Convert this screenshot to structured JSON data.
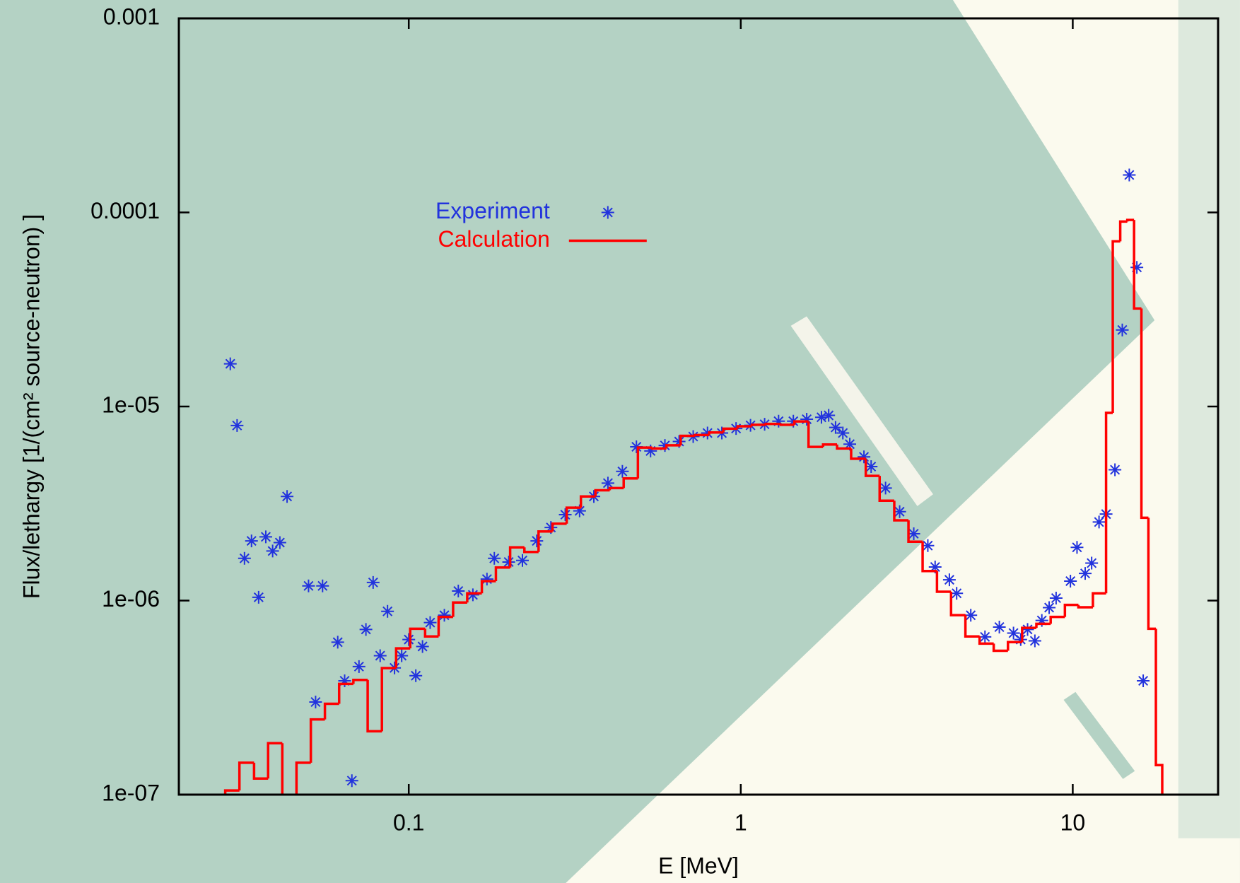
{
  "chart_data": {
    "type": "scatter",
    "xlabel": "E [MeV]",
    "ylabel": "Flux/lethargy [1/(cm² source-neutron) ]",
    "xscale": "log",
    "yscale": "log",
    "xlim": [
      0.0203,
      27.4
    ],
    "ylim": [
      1e-07,
      0.001
    ],
    "xticks": [
      0.1,
      1,
      10
    ],
    "yticks": [
      {
        "value": 1e-07,
        "label": "1e-07"
      },
      {
        "value": 1e-06,
        "label": "1e-06"
      },
      {
        "value": 1e-05,
        "label": "1e-05"
      },
      0.0001,
      0.001
    ],
    "legend": "upper left",
    "series": [
      {
        "name": "Experiment",
        "type": "scatter",
        "color": "#2233dd",
        "x": [
          0.029,
          0.0304,
          0.032,
          0.0336,
          0.0353,
          0.0371,
          0.0389,
          0.0409,
          0.043,
          0.0499,
          0.0524,
          0.055,
          0.0611,
          0.0641,
          0.0674,
          0.0708,
          0.0743,
          0.0781,
          0.082,
          0.0863,
          0.0906,
          0.0952,
          0.1,
          0.105,
          0.11,
          0.116,
          0.128,
          0.141,
          0.156,
          0.172,
          0.181,
          0.2,
          0.22,
          0.243,
          0.268,
          0.296,
          0.327,
          0.361,
          0.398,
          0.44,
          0.485,
          0.535,
          0.591,
          0.652,
          0.719,
          0.794,
          0.877,
          0.968,
          1.07,
          1.18,
          1.3,
          1.44,
          1.58,
          1.75,
          1.84,
          1.93,
          2.03,
          2.13,
          2.35,
          2.47,
          2.73,
          3.01,
          3.32,
          3.66,
          3.85,
          4.25,
          4.47,
          4.93,
          5.44,
          6.01,
          6.63,
          6.97,
          7.31,
          7.69,
          8.07,
          8.49,
          8.91,
          9.84,
          10.3,
          10.9,
          11.4,
          12.0,
          12.6,
          13.4,
          14.1,
          14.8,
          15.6,
          16.3
        ],
        "values": [
          1.66e-05,
          7.98e-06,
          1.65e-06,
          2.03e-06,
          1.04e-06,
          2.13e-06,
          1.8e-06,
          1.99e-06,
          3.44e-06,
          1.19e-06,
          3e-07,
          1.19e-06,
          6.1e-07,
          3.86e-07,
          1.18e-07,
          4.57e-07,
          7.1e-07,
          1.24e-06,
          5.2e-07,
          8.8e-07,
          4.5e-07,
          5.2e-07,
          6.3e-07,
          4.1e-07,
          5.8e-07,
          7.7e-07,
          8.4e-07,
          1.12e-06,
          1.07e-06,
          1.29e-06,
          1.65e-06,
          1.58e-06,
          1.61e-06,
          2.03e-06,
          2.38e-06,
          2.77e-06,
          2.9e-06,
          3.44e-06,
          4.03e-06,
          4.63e-06,
          6.2e-06,
          5.9e-06,
          6.3e-06,
          6.6e-06,
          7e-06,
          7.3e-06,
          7.3e-06,
          7.7e-06,
          8e-06,
          8.1e-06,
          8.4e-06,
          8.4e-06,
          8.6e-06,
          8.8e-06,
          9e-06,
          7.8e-06,
          7.3e-06,
          6.4e-06,
          5.5e-06,
          4.9e-06,
          3.8e-06,
          2.87e-06,
          2.21e-06,
          1.92e-06,
          1.49e-06,
          1.28e-06,
          1.09e-06,
          8.4e-07,
          6.5e-07,
          7.3e-07,
          6.8e-07,
          6.3e-07,
          7.1e-07,
          6.2e-07,
          7.9e-07,
          9.2e-07,
          1.03e-06,
          1.26e-06,
          1.88e-06,
          1.38e-06,
          1.56e-06,
          2.54e-06,
          2.79e-06,
          4.72e-06,
          2.48e-05,
          0.000156,
          5.21e-05,
          3.86e-07
        ]
      },
      {
        "name": "Calculation",
        "type": "histogram",
        "color": "#ff0000",
        "bins": [
          0.028,
          0.0309,
          0.0342,
          0.0377,
          0.0416,
          0.0459,
          0.0507,
          0.0559,
          0.0617,
          0.0681,
          0.0752,
          0.083,
          0.0916,
          0.101,
          0.112,
          0.123,
          0.136,
          0.15,
          0.166,
          0.183,
          0.202,
          0.223,
          0.246,
          0.271,
          0.299,
          0.33,
          0.365,
          0.403,
          0.444,
          0.49,
          0.541,
          0.597,
          0.659,
          0.728,
          0.803,
          0.886,
          0.978,
          1.08,
          1.19,
          1.32,
          1.45,
          1.6,
          1.77,
          1.95,
          2.15,
          2.38,
          2.62,
          2.9,
          3.2,
          3.53,
          3.9,
          4.3,
          4.75,
          5.24,
          5.78,
          6.38,
          7.04,
          7.77,
          8.58,
          9.47,
          10.4,
          11.5,
          12.6,
          13.2,
          13.9,
          14.6,
          15.3,
          16.1,
          16.9,
          17.8,
          18.6
        ],
        "values": [
          1.05e-07,
          1.46e-07,
          1.21e-07,
          1.84e-07,
          9e-08,
          1.46e-07,
          2.44e-07,
          2.94e-07,
          3.72e-07,
          3.9e-07,
          2.12e-07,
          4.49e-07,
          5.67e-07,
          7.16e-07,
          6.53e-07,
          8.24e-07,
          9.77e-07,
          1.09e-06,
          1.26e-06,
          1.48e-06,
          1.88e-06,
          1.78e-06,
          2.27e-06,
          2.49e-06,
          3.01e-06,
          3.44e-06,
          3.7e-06,
          3.8e-06,
          4.26e-06,
          6.14e-06,
          6.08e-06,
          6.31e-06,
          7.06e-06,
          7.13e-06,
          7.35e-06,
          7.69e-06,
          7.91e-06,
          8.05e-06,
          8.13e-06,
          8.05e-06,
          8.38e-06,
          6.19e-06,
          6.37e-06,
          6.08e-06,
          5.38e-06,
          4.39e-06,
          3.27e-06,
          2.59e-06,
          2.01e-06,
          1.42e-06,
          1.11e-06,
          8.41e-07,
          6.53e-07,
          6e-07,
          5.51e-07,
          6.11e-07,
          7.23e-07,
          7.59e-07,
          8.24e-07,
          9.5e-07,
          9.23e-07,
          1.09e-06,
          9.27e-06,
          7.1e-05,
          8.98e-05,
          9.15e-05,
          3.2e-05,
          2.67e-06,
          7.16e-07,
          1.42e-07
        ]
      }
    ]
  }
}
